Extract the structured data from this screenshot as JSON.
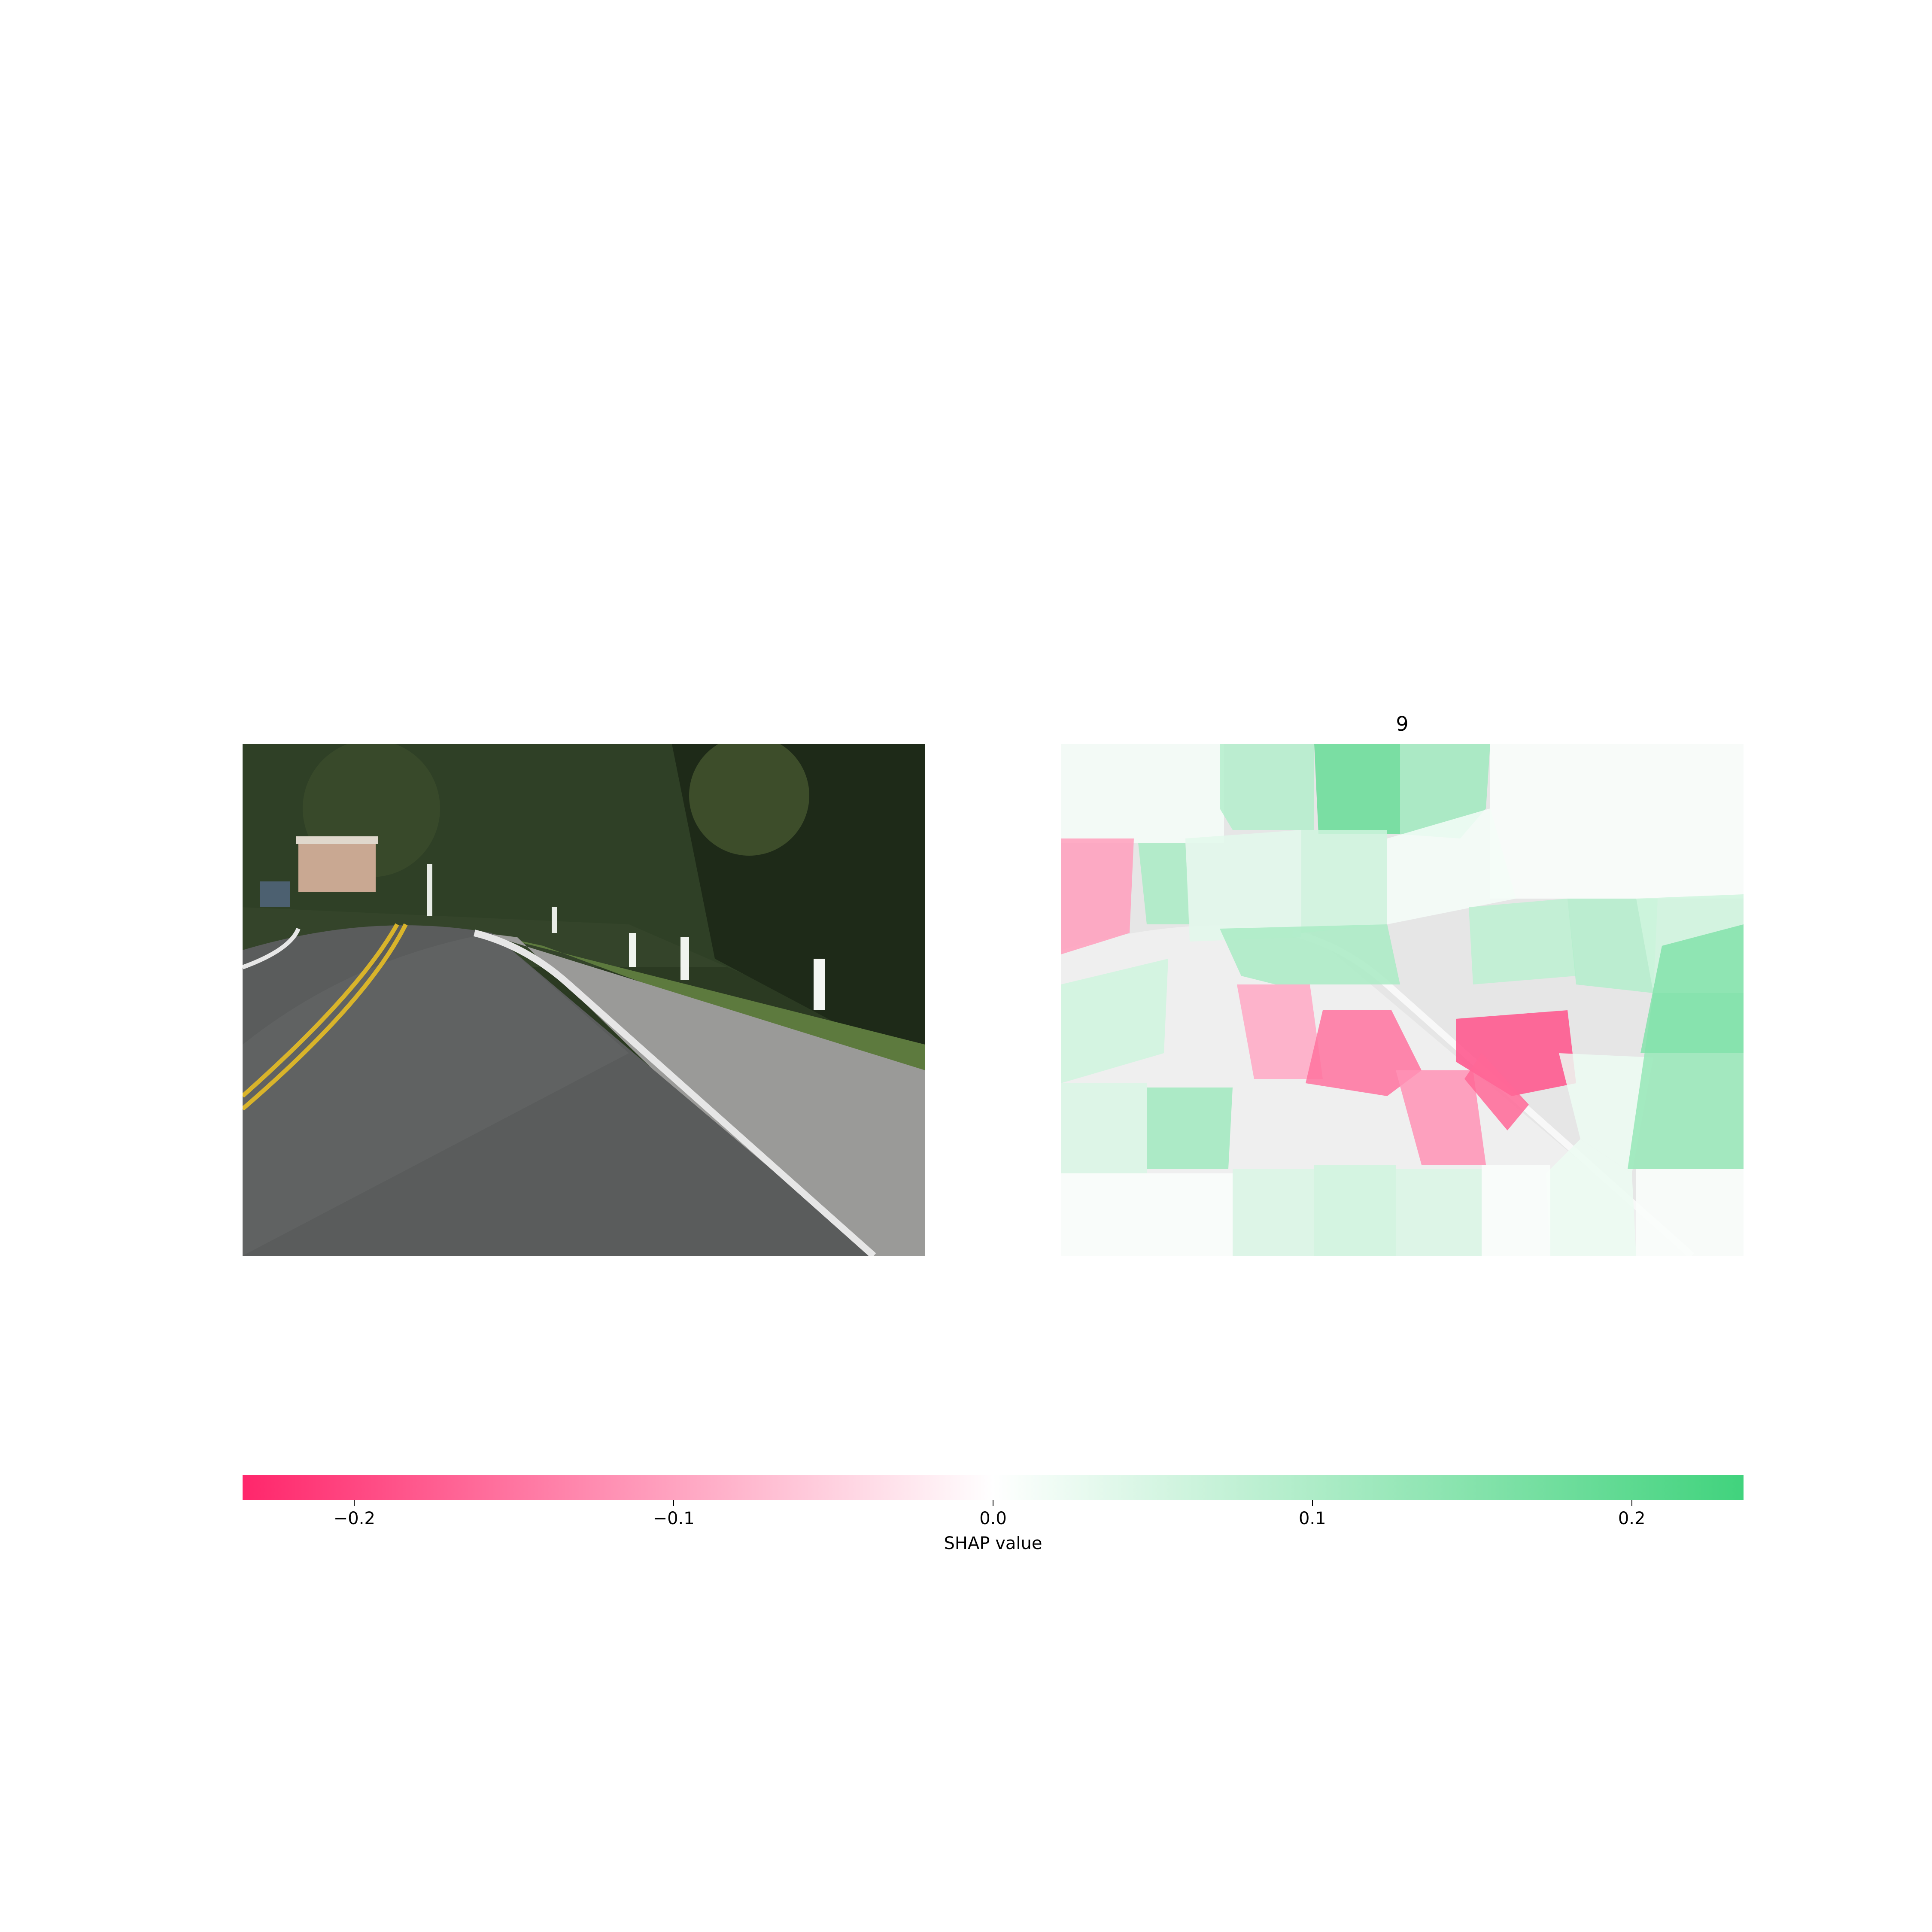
{
  "chart_data": {
    "type": "heatmap",
    "title": "9",
    "colorbar": {
      "label": "SHAP value",
      "range": [
        -0.235,
        0.235
      ],
      "ticks": [
        -0.2,
        -0.1,
        0.0,
        0.1,
        0.2
      ],
      "tick_labels": [
        "−0.2",
        "−0.1",
        "0.0",
        "0.1",
        "0.2"
      ],
      "colors": {
        "negative": "#ff0051",
        "neutral": "#ffffff",
        "positive": "#1fcb66"
      }
    },
    "segments_shown": "superpixel SHAP overlay on road image"
  },
  "icons": {
    "left_panel": "road-photo",
    "right_panel": "shap-overlay"
  }
}
